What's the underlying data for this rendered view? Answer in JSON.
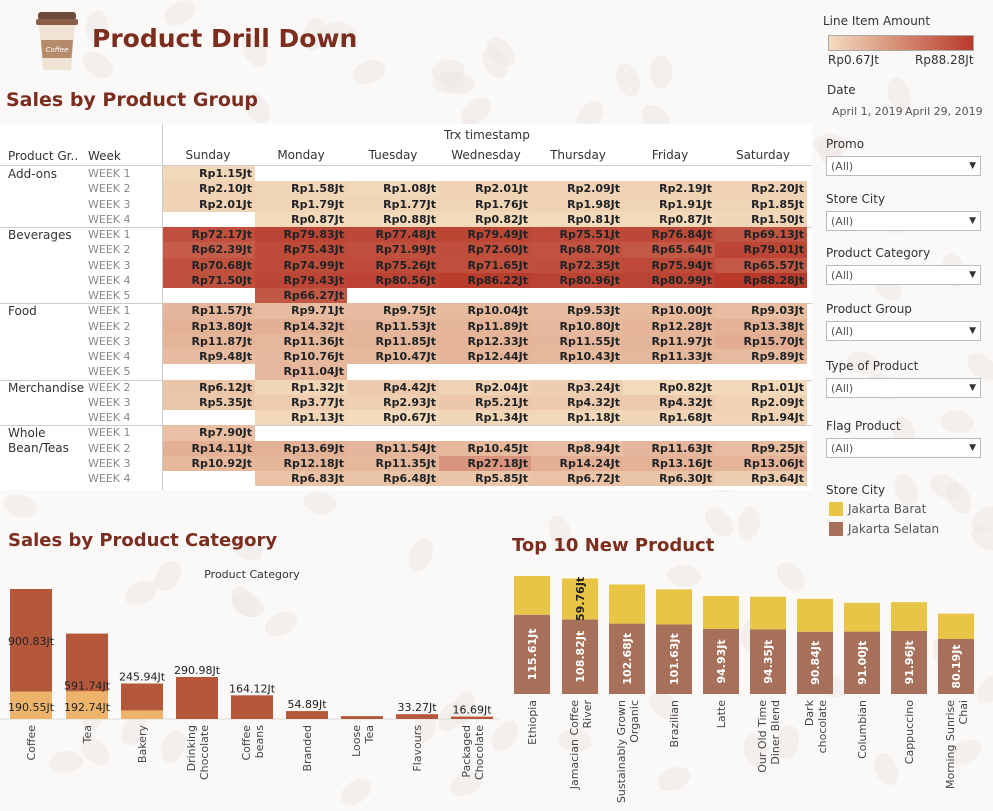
{
  "title": "Product Drill Down",
  "cup_text": "Coffee",
  "colors": {
    "heat_low": "#f3dcbd",
    "heat_high": "#b8392a",
    "jakarta_barat": "#e8c547",
    "jakarta_selatan": "#a6705a",
    "accent": "#7b2e1f",
    "cat_bar": "#b5573b",
    "cat_bar_low": "#edb36b"
  },
  "heatmap": {
    "title": "Sales by Product Group",
    "col_header_group": "Trx timestamp",
    "row_header_group": "Product Gr..",
    "row_header_week": "Week",
    "days": [
      "Sunday",
      "Monday",
      "Tuesday",
      "Wednesday",
      "Thursday",
      "Friday",
      "Saturday"
    ],
    "groups": [
      {
        "name": "Add-ons",
        "rows": [
          {
            "week": "WEEK 1",
            "cells": [
              "Rp1.15Jt",
              "",
              "",
              "",
              "",
              "",
              ""
            ],
            "vals": [
              1.15,
              null,
              null,
              null,
              null,
              null,
              null
            ]
          },
          {
            "week": "WEEK 2",
            "cells": [
              "Rp2.10Jt",
              "Rp1.58Jt",
              "Rp1.08Jt",
              "Rp2.01Jt",
              "Rp2.09Jt",
              "Rp2.19Jt",
              "Rp2.20Jt"
            ],
            "vals": [
              2.1,
              1.58,
              1.08,
              2.01,
              2.09,
              2.19,
              2.2
            ]
          },
          {
            "week": "WEEK 3",
            "cells": [
              "Rp2.01Jt",
              "Rp1.79Jt",
              "Rp1.77Jt",
              "Rp1.76Jt",
              "Rp1.98Jt",
              "Rp1.91Jt",
              "Rp1.85Jt"
            ],
            "vals": [
              2.01,
              1.79,
              1.77,
              1.76,
              1.98,
              1.91,
              1.85
            ]
          },
          {
            "week": "WEEK 4",
            "cells": [
              "",
              "Rp0.87Jt",
              "Rp0.88Jt",
              "Rp0.82Jt",
              "Rp0.81Jt",
              "Rp0.87Jt",
              "Rp1.50Jt"
            ],
            "vals": [
              null,
              0.87,
              0.88,
              0.82,
              0.81,
              0.87,
              1.5
            ]
          }
        ]
      },
      {
        "name": "Beverages",
        "rows": [
          {
            "week": "WEEK 1",
            "cells": [
              "Rp72.17Jt",
              "Rp79.83Jt",
              "Rp77.48Jt",
              "Rp79.49Jt",
              "Rp75.51Jt",
              "Rp76.84Jt",
              "Rp69.13Jt"
            ],
            "vals": [
              72.17,
              79.83,
              77.48,
              79.49,
              75.51,
              76.84,
              69.13
            ]
          },
          {
            "week": "WEEK 2",
            "cells": [
              "Rp62.39Jt",
              "Rp75.43Jt",
              "Rp71.99Jt",
              "Rp72.60Jt",
              "Rp68.70Jt",
              "Rp65.64Jt",
              "Rp79.01Jt"
            ],
            "vals": [
              62.39,
              75.43,
              71.99,
              72.6,
              68.7,
              65.64,
              79.01
            ]
          },
          {
            "week": "WEEK 3",
            "cells": [
              "Rp70.68Jt",
              "Rp74.99Jt",
              "Rp75.26Jt",
              "Rp71.65Jt",
              "Rp72.35Jt",
              "Rp75.94Jt",
              "Rp65.57Jt"
            ],
            "vals": [
              70.68,
              74.99,
              75.26,
              71.65,
              72.35,
              75.94,
              65.57
            ]
          },
          {
            "week": "WEEK 4",
            "cells": [
              "Rp71.50Jt",
              "Rp79.43Jt",
              "Rp80.56Jt",
              "Rp86.22Jt",
              "Rp80.96Jt",
              "Rp80.99Jt",
              "Rp88.28Jt"
            ],
            "vals": [
              71.5,
              79.43,
              80.56,
              86.22,
              80.96,
              80.99,
              88.28
            ]
          },
          {
            "week": "WEEK 5",
            "cells": [
              "",
              "Rp66.27Jt",
              "",
              "",
              "",
              "",
              ""
            ],
            "vals": [
              null,
              66.27,
              null,
              null,
              null,
              null,
              null
            ]
          }
        ]
      },
      {
        "name": "Food",
        "rows": [
          {
            "week": "WEEK 1",
            "cells": [
              "Rp11.57Jt",
              "Rp9.71Jt",
              "Rp9.75Jt",
              "Rp10.04Jt",
              "Rp9.53Jt",
              "Rp10.00Jt",
              "Rp9.03Jt"
            ],
            "vals": [
              11.57,
              9.71,
              9.75,
              10.04,
              9.53,
              10.0,
              9.03
            ]
          },
          {
            "week": "WEEK 2",
            "cells": [
              "Rp13.80Jt",
              "Rp14.32Jt",
              "Rp11.53Jt",
              "Rp11.89Jt",
              "Rp10.80Jt",
              "Rp12.28Jt",
              "Rp13.38Jt"
            ],
            "vals": [
              13.8,
              14.32,
              11.53,
              11.89,
              10.8,
              12.28,
              13.38
            ]
          },
          {
            "week": "WEEK 3",
            "cells": [
              "Rp11.87Jt",
              "Rp11.36Jt",
              "Rp11.85Jt",
              "Rp12.33Jt",
              "Rp11.55Jt",
              "Rp11.97Jt",
              "Rp15.70Jt"
            ],
            "vals": [
              11.87,
              11.36,
              11.85,
              12.33,
              11.55,
              11.97,
              15.7
            ]
          },
          {
            "week": "WEEK 4",
            "cells": [
              "Rp9.48Jt",
              "Rp10.76Jt",
              "Rp10.47Jt",
              "Rp12.44Jt",
              "Rp10.43Jt",
              "Rp11.33Jt",
              "Rp9.89Jt"
            ],
            "vals": [
              9.48,
              10.76,
              10.47,
              12.44,
              10.43,
              11.33,
              9.89
            ]
          },
          {
            "week": "WEEK 5",
            "cells": [
              "",
              "Rp11.04Jt",
              "",
              "",
              "",
              "",
              ""
            ],
            "vals": [
              null,
              11.04,
              null,
              null,
              null,
              null,
              null
            ]
          }
        ]
      },
      {
        "name": "Merchandise",
        "rows": [
          {
            "week": "WEEK 2",
            "cells": [
              "Rp6.12Jt",
              "Rp1.32Jt",
              "Rp4.42Jt",
              "Rp2.04Jt",
              "Rp3.24Jt",
              "Rp0.82Jt",
              "Rp1.01Jt"
            ],
            "vals": [
              6.12,
              1.32,
              4.42,
              2.04,
              3.24,
              0.82,
              1.01
            ]
          },
          {
            "week": "WEEK 3",
            "cells": [
              "Rp5.35Jt",
              "Rp3.77Jt",
              "Rp2.93Jt",
              "Rp5.21Jt",
              "Rp4.32Jt",
              "Rp4.32Jt",
              "Rp2.09Jt"
            ],
            "vals": [
              5.35,
              3.77,
              2.93,
              5.21,
              4.32,
              4.32,
              2.09
            ]
          },
          {
            "week": "WEEK 4",
            "cells": [
              "",
              "Rp1.13Jt",
              "Rp0.67Jt",
              "Rp1.34Jt",
              "Rp1.18Jt",
              "Rp1.68Jt",
              "Rp1.94Jt"
            ],
            "vals": [
              null,
              1.13,
              0.67,
              1.34,
              1.18,
              1.68,
              1.94
            ]
          }
        ]
      },
      {
        "name": "Whole Bean/Teas",
        "rows": [
          {
            "week": "WEEK 1",
            "cells": [
              "Rp7.90Jt",
              "",
              "",
              "",
              "",
              "",
              ""
            ],
            "vals": [
              7.9,
              null,
              null,
              null,
              null,
              null,
              null
            ]
          },
          {
            "week": "WEEK 2",
            "cells": [
              "Rp14.11Jt",
              "Rp13.69Jt",
              "Rp11.54Jt",
              "Rp10.45Jt",
              "Rp8.94Jt",
              "Rp11.63Jt",
              "Rp9.25Jt"
            ],
            "vals": [
              14.11,
              13.69,
              11.54,
              10.45,
              8.94,
              11.63,
              9.25
            ]
          },
          {
            "week": "WEEK 3",
            "cells": [
              "Rp10.92Jt",
              "Rp12.18Jt",
              "Rp11.35Jt",
              "Rp27.18Jt",
              "Rp14.24Jt",
              "Rp13.16Jt",
              "Rp13.06Jt"
            ],
            "vals": [
              10.92,
              12.18,
              11.35,
              27.18,
              14.24,
              13.16,
              13.06
            ]
          },
          {
            "week": "WEEK 4",
            "cells": [
              "",
              "Rp6.83Jt",
              "Rp6.48Jt",
              "Rp5.85Jt",
              "Rp6.72Jt",
              "Rp6.30Jt",
              "Rp3.64Jt"
            ],
            "vals": [
              null,
              6.83,
              6.48,
              5.85,
              6.72,
              6.3,
              3.64
            ]
          }
        ]
      }
    ]
  },
  "filters": {
    "legend_title": "Line Item Amount",
    "legend_min": "Rp0.67Jt",
    "legend_max": "Rp88.28Jt",
    "date_label": "Date",
    "date_start": "April 1, 2019",
    "date_end": "April 29, 2019",
    "dropdowns": [
      {
        "label": "Promo",
        "value": "(All)"
      },
      {
        "label": "Store City",
        "value": "(All)"
      },
      {
        "label": "Product Category",
        "value": "(All)"
      },
      {
        "label": "Product Group",
        "value": "(All)"
      },
      {
        "label": "Type of Product",
        "value": "(All)"
      },
      {
        "label": "Flag Product",
        "value": "(All)"
      }
    ],
    "store_legend_title": "Store City",
    "store_legend": [
      "Jakarta Barat",
      "Jakarta Selatan"
    ]
  },
  "chart_data": [
    {
      "type": "bar",
      "title": "Sales by Product Category",
      "subtitle": "Product Category",
      "categories": [
        "Coffee",
        "Tea",
        "Bakery",
        "Drinking Chocolate",
        "Coffee beans",
        "Branded",
        "Loose Tea",
        "Flavours",
        "Packaged Chocolate"
      ],
      "labels_total": [
        "900.83Jt",
        "591.74Jt",
        "245.94Jt",
        "290.98Jt",
        "164.12Jt",
        "54.89Jt",
        "",
        "33.27Jt",
        "16.69Jt"
      ],
      "labels_low": [
        "190.55Jt",
        "192.74Jt",
        "",
        "",
        "",
        "",
        "",
        "",
        ""
      ],
      "values": [
        900.83,
        591.74,
        245.94,
        290.98,
        164.12,
        54.89,
        20,
        33.27,
        16.69
      ],
      "values_low": [
        190.55,
        192.74,
        60,
        0,
        0,
        0,
        0,
        0,
        0
      ]
    },
    {
      "type": "bar",
      "title": "Top 10 New Product",
      "categories": [
        "Ethiopia",
        "Jamacian Coffee River",
        "Sustainably Grown Organic",
        "Brazilian",
        "Latte",
        "Our Old Time Diner Blend",
        "Dark chocolate",
        "Columbian",
        "Cappuccino",
        "Morning Sunrise Chai"
      ],
      "series": [
        {
          "name": "Jakarta Selatan",
          "values": [
            115.61,
            108.82,
            102.68,
            101.63,
            94.93,
            94.35,
            90.84,
            91.0,
            91.96,
            80.19
          ],
          "labels": [
            "115.61Jt",
            "108.82Jt",
            "102.68Jt",
            "101.63Jt",
            "94.93Jt",
            "94.35Jt",
            "90.84Jt",
            "91.00Jt",
            "91.96Jt",
            "80.19Jt"
          ]
        },
        {
          "name": "Jakarta Barat",
          "values": [
            56.5,
            59.76,
            57.0,
            51.0,
            48.0,
            47.5,
            48.0,
            42.0,
            42.0,
            37.0
          ],
          "labels": [
            "",
            "59.76Jt",
            "",
            "",
            "",
            "",
            "",
            "",
            "",
            ""
          ]
        }
      ]
    }
  ]
}
